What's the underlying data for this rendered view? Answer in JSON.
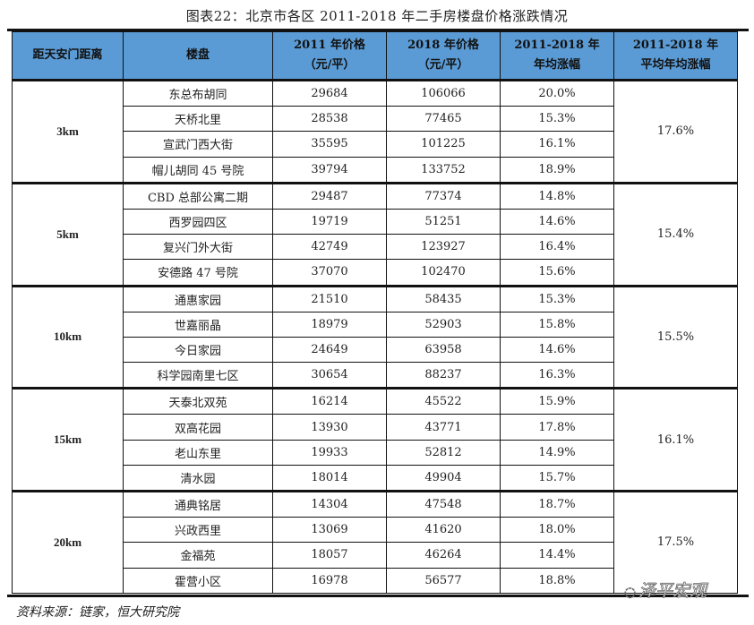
{
  "title": "图表22：北京市各区 2011-2018 年二手房楼盘价格涨跌情况",
  "headers": [
    "距天安门距离",
    "楼盘",
    "2011 年价格\n（元/平）",
    "2018 年价格\n（元/平）",
    "2011-2018 年\n年均涨幅",
    "2011-2018 年\n平均年均涨幅"
  ],
  "groups": [
    {
      "distance": "3km",
      "avg": "17.6%",
      "rows": [
        [
          "东总布胡同",
          "29684",
          "106066",
          "20.0%"
        ],
        [
          "天桥北里",
          "28538",
          "77465",
          "15.3%"
        ],
        [
          "宣武门西大街",
          "35595",
          "101225",
          "16.1%"
        ],
        [
          "帽儿胡同 45 号院",
          "39794",
          "133752",
          "18.9%"
        ]
      ]
    },
    {
      "distance": "5km",
      "avg": "15.4%",
      "rows": [
        [
          "CBD 总部公寓二期",
          "29487",
          "77374",
          "14.8%"
        ],
        [
          "西罗园四区",
          "19719",
          "51251",
          "14.6%"
        ],
        [
          "复兴门外大街",
          "42749",
          "123927",
          "16.4%"
        ],
        [
          "安德路 47 号院",
          "37070",
          "102470",
          "15.6%"
        ]
      ]
    },
    {
      "distance": "10km",
      "avg": "15.5%",
      "rows": [
        [
          "通惠家园",
          "21510",
          "58435",
          "15.3%"
        ],
        [
          "世嘉丽晶",
          "18979",
          "52903",
          "15.8%"
        ],
        [
          "今日家园",
          "24649",
          "63958",
          "14.6%"
        ],
        [
          "科学园南里七区",
          "30654",
          "88237",
          "16.3%"
        ]
      ]
    },
    {
      "distance": "15km",
      "avg": "16.1%",
      "rows": [
        [
          "天泰北双苑",
          "16214",
          "45522",
          "15.9%"
        ],
        [
          "双高花园",
          "13930",
          "43771",
          "17.8%"
        ],
        [
          "老山东里",
          "19933",
          "52812",
          "14.9%"
        ],
        [
          "清水园",
          "18014",
          "49904",
          "15.7%"
        ]
      ]
    },
    {
      "distance": "20km",
      "avg": "17.5%",
      "rows": [
        [
          "通典铭居",
          "14304",
          "47548",
          "18.7%"
        ],
        [
          "兴政西里",
          "13069",
          "41620",
          "18.0%"
        ],
        [
          "金福苑",
          "18057",
          "46264",
          "14.4%"
        ],
        [
          "霍营小区",
          "16978",
          "56577",
          "18.8%"
        ]
      ]
    }
  ],
  "source": "资料来源：链家，恒大研究院",
  "watermark": "泽平宏观",
  "header_color": "#5b9bd5"
}
